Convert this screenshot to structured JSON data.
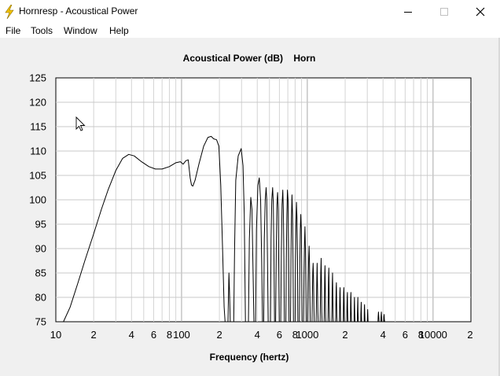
{
  "window": {
    "title": "Hornresp - Acoustical Power",
    "minimize_icon": "minimize-icon",
    "maximize_icon": "maximize-icon",
    "close_icon": "close-icon",
    "app_icon": "lightning-bolt-icon"
  },
  "menu": {
    "items": [
      {
        "label": "File"
      },
      {
        "label": "Tools"
      },
      {
        "label": "Window"
      },
      {
        "label": "Help"
      }
    ]
  },
  "chart_data": {
    "type": "line",
    "title": "Acoustical Power (dB)    Horn",
    "xlabel": "Frequency (hertz)",
    "ylabel": "",
    "x_scale": "log",
    "xlim": [
      10,
      20000
    ],
    "ylim": [
      75,
      125
    ],
    "grid": true,
    "y_ticks": [
      75,
      80,
      85,
      90,
      95,
      100,
      105,
      110,
      115,
      120,
      125
    ],
    "x_ticks": [
      {
        "value": 10,
        "label": "10"
      },
      {
        "value": 20,
        "label": "2"
      },
      {
        "value": 40,
        "label": "4"
      },
      {
        "value": 60,
        "label": "6"
      },
      {
        "value": 80,
        "label": "8"
      },
      {
        "value": 100,
        "label": "100"
      },
      {
        "value": 200,
        "label": "2"
      },
      {
        "value": 400,
        "label": "4"
      },
      {
        "value": 600,
        "label": "6"
      },
      {
        "value": 800,
        "label": "8"
      },
      {
        "value": 1000,
        "label": "1000"
      },
      {
        "value": 2000,
        "label": "2"
      },
      {
        "value": 4000,
        "label": "4"
      },
      {
        "value": 6000,
        "label": "6"
      },
      {
        "value": 8000,
        "label": "8"
      },
      {
        "value": 10000,
        "label": "10000"
      },
      {
        "value": 20000,
        "label": "2"
      }
    ],
    "series": [
      {
        "color": "#000000",
        "points": [
          [
            11.5,
            75
          ],
          [
            13,
            78
          ],
          [
            15,
            83
          ],
          [
            17,
            87.5
          ],
          [
            20,
            93
          ],
          [
            23,
            98
          ],
          [
            26,
            102
          ],
          [
            30,
            106
          ],
          [
            34,
            108.5
          ],
          [
            38,
            109.3
          ],
          [
            42,
            109
          ],
          [
            48,
            107.8
          ],
          [
            55,
            106.8
          ],
          [
            62,
            106.3
          ],
          [
            70,
            106.3
          ],
          [
            80,
            106.8
          ],
          [
            90,
            107.6
          ],
          [
            98,
            107.8
          ],
          [
            103,
            107.3
          ],
          [
            108,
            108
          ],
          [
            113,
            108.2
          ],
          [
            117,
            104.5
          ],
          [
            120,
            103
          ],
          [
            123,
            102.8
          ],
          [
            128,
            104
          ],
          [
            138,
            107.5
          ],
          [
            150,
            111
          ],
          [
            162,
            112.8
          ],
          [
            172,
            113
          ],
          [
            180,
            112.5
          ],
          [
            190,
            112.3
          ],
          [
            198,
            111
          ],
          [
            205,
            103
          ],
          [
            212,
            90
          ],
          [
            218,
            78
          ],
          [
            222,
            75
          ],
          [
            234,
            75
          ],
          [
            236,
            80
          ],
          [
            238,
            85
          ],
          [
            240,
            82
          ],
          [
            244,
            75
          ],
          [
            260,
            75
          ],
          [
            264,
            90
          ],
          [
            270,
            104
          ],
          [
            282,
            109
          ],
          [
            298,
            110.5
          ],
          [
            308,
            107
          ],
          [
            315,
            97
          ],
          [
            322,
            75
          ],
          [
            340,
            75
          ],
          [
            346,
            92
          ],
          [
            355,
            100.5
          ],
          [
            363,
            98
          ],
          [
            370,
            86
          ],
          [
            376,
            75
          ],
          [
            388,
            75
          ],
          [
            394,
            94
          ],
          [
            405,
            103
          ],
          [
            415,
            104.5
          ],
          [
            425,
            100
          ],
          [
            433,
            88
          ],
          [
            440,
            75
          ],
          [
            450,
            75
          ],
          [
            455,
            92
          ],
          [
            463,
            100
          ],
          [
            470,
            102.5
          ],
          [
            476,
            100
          ],
          [
            482,
            88
          ],
          [
            488,
            75
          ],
          [
            510,
            75
          ],
          [
            515,
            92
          ],
          [
            522,
            100
          ],
          [
            530,
            102.5
          ],
          [
            537,
            99
          ],
          [
            543,
            88
          ],
          [
            549,
            75
          ],
          [
            560,
            75
          ],
          [
            566,
            90
          ],
          [
            573,
            99
          ],
          [
            580,
            101.5
          ],
          [
            587,
            98
          ],
          [
            592,
            88
          ],
          [
            598,
            75
          ],
          [
            615,
            75
          ],
          [
            622,
            90
          ],
          [
            630,
            99
          ],
          [
            638,
            102
          ],
          [
            645,
            98
          ],
          [
            651,
            88
          ],
          [
            657,
            75
          ],
          [
            675,
            75
          ],
          [
            681,
            88
          ],
          [
            688,
            97
          ],
          [
            695,
            102
          ],
          [
            703,
            100
          ],
          [
            710,
            90
          ],
          [
            716,
            75
          ],
          [
            735,
            75
          ],
          [
            741,
            88
          ],
          [
            748,
            96
          ],
          [
            755,
            101
          ],
          [
            763,
            97
          ],
          [
            770,
            88
          ],
          [
            776,
            75
          ],
          [
            800,
            75
          ],
          [
            806,
            88
          ],
          [
            813,
            95
          ],
          [
            820,
            99.5
          ],
          [
            828,
            96
          ],
          [
            835,
            88
          ],
          [
            841,
            75
          ],
          [
            865,
            75
          ],
          [
            872,
            87
          ],
          [
            880,
            94
          ],
          [
            888,
            97
          ],
          [
            896,
            94
          ],
          [
            903,
            85
          ],
          [
            910,
            75
          ],
          [
            935,
            75
          ],
          [
            942,
            85
          ],
          [
            950,
            91
          ],
          [
            958,
            94.5
          ],
          [
            966,
            90
          ],
          [
            973,
            82
          ],
          [
            980,
            75
          ],
          [
            1010,
            75
          ],
          [
            1017,
            83
          ],
          [
            1025,
            88
          ],
          [
            1033,
            90.5
          ],
          [
            1041,
            87
          ],
          [
            1048,
            80
          ],
          [
            1055,
            75
          ],
          [
            1090,
            75
          ],
          [
            1097,
            80
          ],
          [
            1105,
            85
          ],
          [
            1113,
            87
          ],
          [
            1121,
            84
          ],
          [
            1128,
            78
          ],
          [
            1135,
            75
          ],
          [
            1175,
            75
          ],
          [
            1182,
            79
          ],
          [
            1190,
            84
          ],
          [
            1198,
            87
          ],
          [
            1206,
            82
          ],
          [
            1213,
            77
          ],
          [
            1220,
            75
          ],
          [
            1265,
            75
          ],
          [
            1272,
            80
          ],
          [
            1280,
            85
          ],
          [
            1288,
            88
          ],
          [
            1296,
            83
          ],
          [
            1303,
            77
          ],
          [
            1310,
            75
          ],
          [
            1360,
            75
          ],
          [
            1367,
            79
          ],
          [
            1375,
            84
          ],
          [
            1383,
            86.5
          ],
          [
            1391,
            82
          ],
          [
            1398,
            76
          ],
          [
            1405,
            75
          ],
          [
            1460,
            75
          ],
          [
            1467,
            79
          ],
          [
            1475,
            84
          ],
          [
            1483,
            86
          ],
          [
            1491,
            81
          ],
          [
            1498,
            76
          ],
          [
            1505,
            75
          ],
          [
            1565,
            75
          ],
          [
            1572,
            79
          ],
          [
            1580,
            83
          ],
          [
            1588,
            85
          ],
          [
            1596,
            80
          ],
          [
            1603,
            76
          ],
          [
            1610,
            75
          ],
          [
            1680,
            75
          ],
          [
            1687,
            78
          ],
          [
            1695,
            82
          ],
          [
            1703,
            83
          ],
          [
            1711,
            79
          ],
          [
            1718,
            76
          ],
          [
            1725,
            75
          ],
          [
            1800,
            75
          ],
          [
            1807,
            78
          ],
          [
            1815,
            81
          ],
          [
            1823,
            82
          ],
          [
            1831,
            79
          ],
          [
            1838,
            76
          ],
          [
            1845,
            75
          ],
          [
            1930,
            75
          ],
          [
            1937,
            78
          ],
          [
            1945,
            81
          ],
          [
            1953,
            82
          ],
          [
            1961,
            79
          ],
          [
            1968,
            76
          ],
          [
            1975,
            75
          ],
          [
            2060,
            75
          ],
          [
            2067,
            78
          ],
          [
            2075,
            80
          ],
          [
            2083,
            81
          ],
          [
            2091,
            78
          ],
          [
            2098,
            76
          ],
          [
            2105,
            75
          ],
          [
            2200,
            75
          ],
          [
            2207,
            78
          ],
          [
            2215,
            80
          ],
          [
            2223,
            81
          ],
          [
            2231,
            78
          ],
          [
            2238,
            76
          ],
          [
            2245,
            75
          ],
          [
            2350,
            75
          ],
          [
            2357,
            77
          ],
          [
            2365,
            79
          ],
          [
            2373,
            80
          ],
          [
            2381,
            77
          ],
          [
            2388,
            76
          ],
          [
            2395,
            75
          ],
          [
            2500,
            75
          ],
          [
            2507,
            77
          ],
          [
            2515,
            79
          ],
          [
            2523,
            80
          ],
          [
            2531,
            77
          ],
          [
            2538,
            76
          ],
          [
            2545,
            75
          ],
          [
            2660,
            75
          ],
          [
            2667,
            76.5
          ],
          [
            2675,
            78
          ],
          [
            2683,
            79
          ],
          [
            2691,
            77
          ],
          [
            2698,
            76
          ],
          [
            2705,
            75
          ],
          [
            2830,
            75
          ],
          [
            2837,
            76.5
          ],
          [
            2845,
            78
          ],
          [
            2853,
            78.5
          ],
          [
            2861,
            77
          ],
          [
            2868,
            76
          ],
          [
            2875,
            75
          ],
          [
            3000,
            75
          ],
          [
            3007,
            76
          ],
          [
            3015,
            77
          ],
          [
            3023,
            77.5
          ],
          [
            3031,
            76.5
          ],
          [
            3038,
            75.5
          ],
          [
            3045,
            75
          ],
          [
            3650,
            75
          ],
          [
            3660,
            76
          ],
          [
            3680,
            77
          ],
          [
            3700,
            76
          ],
          [
            3720,
            75
          ],
          [
            3850,
            75
          ],
          [
            3860,
            76
          ],
          [
            3880,
            77
          ],
          [
            3900,
            76
          ],
          [
            3920,
            75
          ],
          [
            4050,
            75
          ],
          [
            4060,
            76
          ],
          [
            4080,
            76.5
          ],
          [
            4100,
            75.5
          ],
          [
            4120,
            75
          ]
        ]
      }
    ]
  }
}
